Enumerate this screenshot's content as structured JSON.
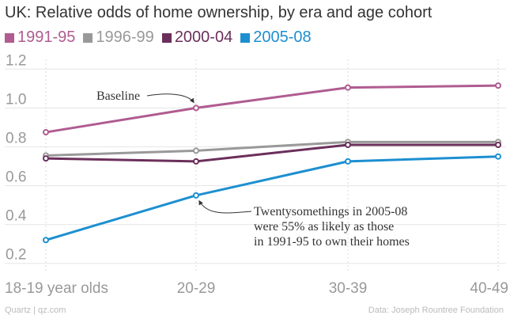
{
  "chart_data": {
    "type": "line",
    "title": "UK: Relative odds of home ownership, by era and age cohort",
    "categories": [
      "18-19 year olds",
      "20-29",
      "30-39",
      "40-49"
    ],
    "ylim": [
      0.15,
      1.25
    ],
    "yticks": [
      "0.2",
      "0.4",
      "0.6",
      "0.8",
      "1.0",
      "1.2"
    ],
    "grid": true,
    "legend_placement": "top-left",
    "series": [
      {
        "name": "1991-95",
        "color": "#b05c91",
        "values": [
          0.875,
          1.0,
          1.105,
          1.115
        ]
      },
      {
        "name": "1996-99",
        "color": "#999999",
        "values": [
          0.755,
          0.78,
          0.825,
          0.825
        ]
      },
      {
        "name": "2000-04",
        "color": "#6b2f5b",
        "values": [
          0.74,
          0.725,
          0.81,
          0.81
        ]
      },
      {
        "name": "2005-08",
        "color": "#1d8fd0",
        "values": [
          0.32,
          0.55,
          0.725,
          0.75
        ]
      }
    ],
    "annotations": [
      {
        "series": 0,
        "point": 1,
        "lines": [
          "Baseline"
        ]
      },
      {
        "series": 3,
        "point": 1,
        "lines": [
          "Twentysomethings in 2005-08",
          "were 55% as likely as those",
          "in 1991-95 to own their homes"
        ]
      }
    ]
  },
  "footer": {
    "source_left": "Quartz | qz.com",
    "source_right": "Data: Joseph Rountree Foundation"
  }
}
